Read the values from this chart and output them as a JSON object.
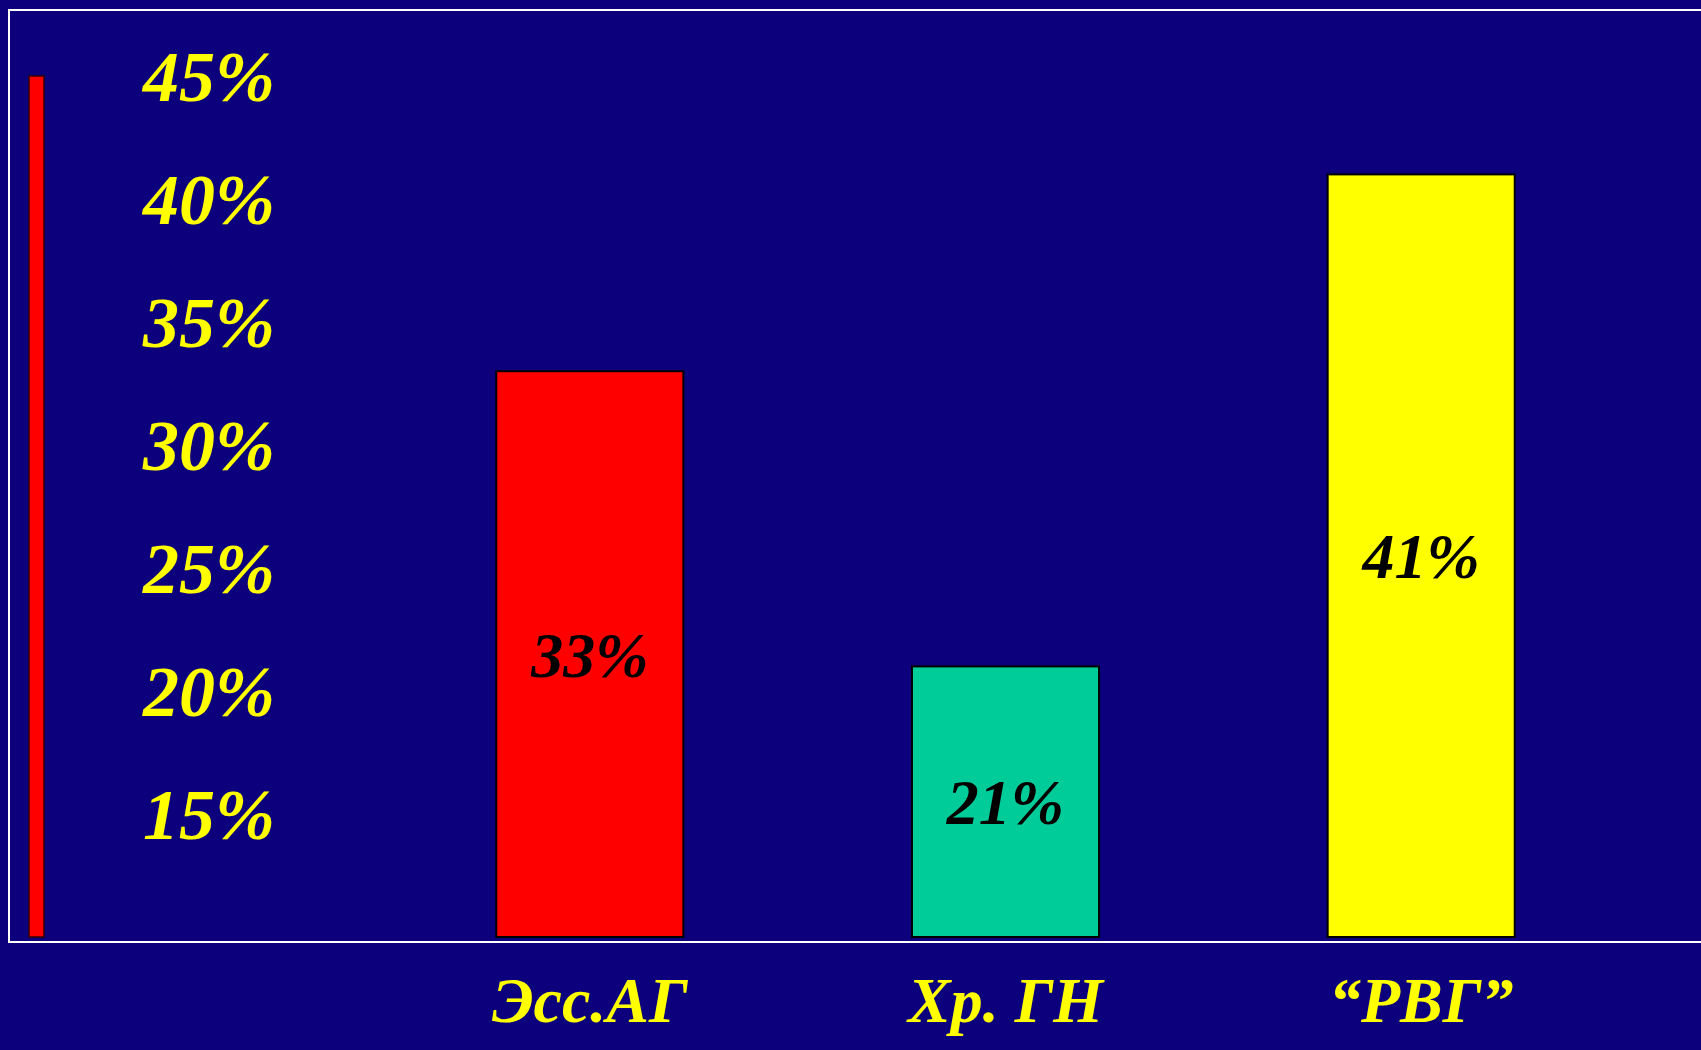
{
  "chart_data": {
    "type": "bar",
    "categories": [
      "Эсс.АГ",
      "Хр. ГН",
      "“РВГ”"
    ],
    "values": [
      33,
      21,
      41
    ],
    "colors": [
      "#ff0000",
      "#00cc99",
      "#ffff00"
    ],
    "ylim": [
      10,
      45
    ],
    "yticks": [
      {
        "value": 15,
        "label": "15%"
      },
      {
        "value": 20,
        "label": "20%"
      },
      {
        "value": 25,
        "label": "25%"
      },
      {
        "value": 30,
        "label": "30%"
      },
      {
        "value": 35,
        "label": "35%"
      },
      {
        "value": 40,
        "label": "40%"
      },
      {
        "value": 45,
        "label": "45%"
      }
    ],
    "value_labels": [
      "33%",
      "21%",
      "41%"
    ],
    "grid": false
  }
}
